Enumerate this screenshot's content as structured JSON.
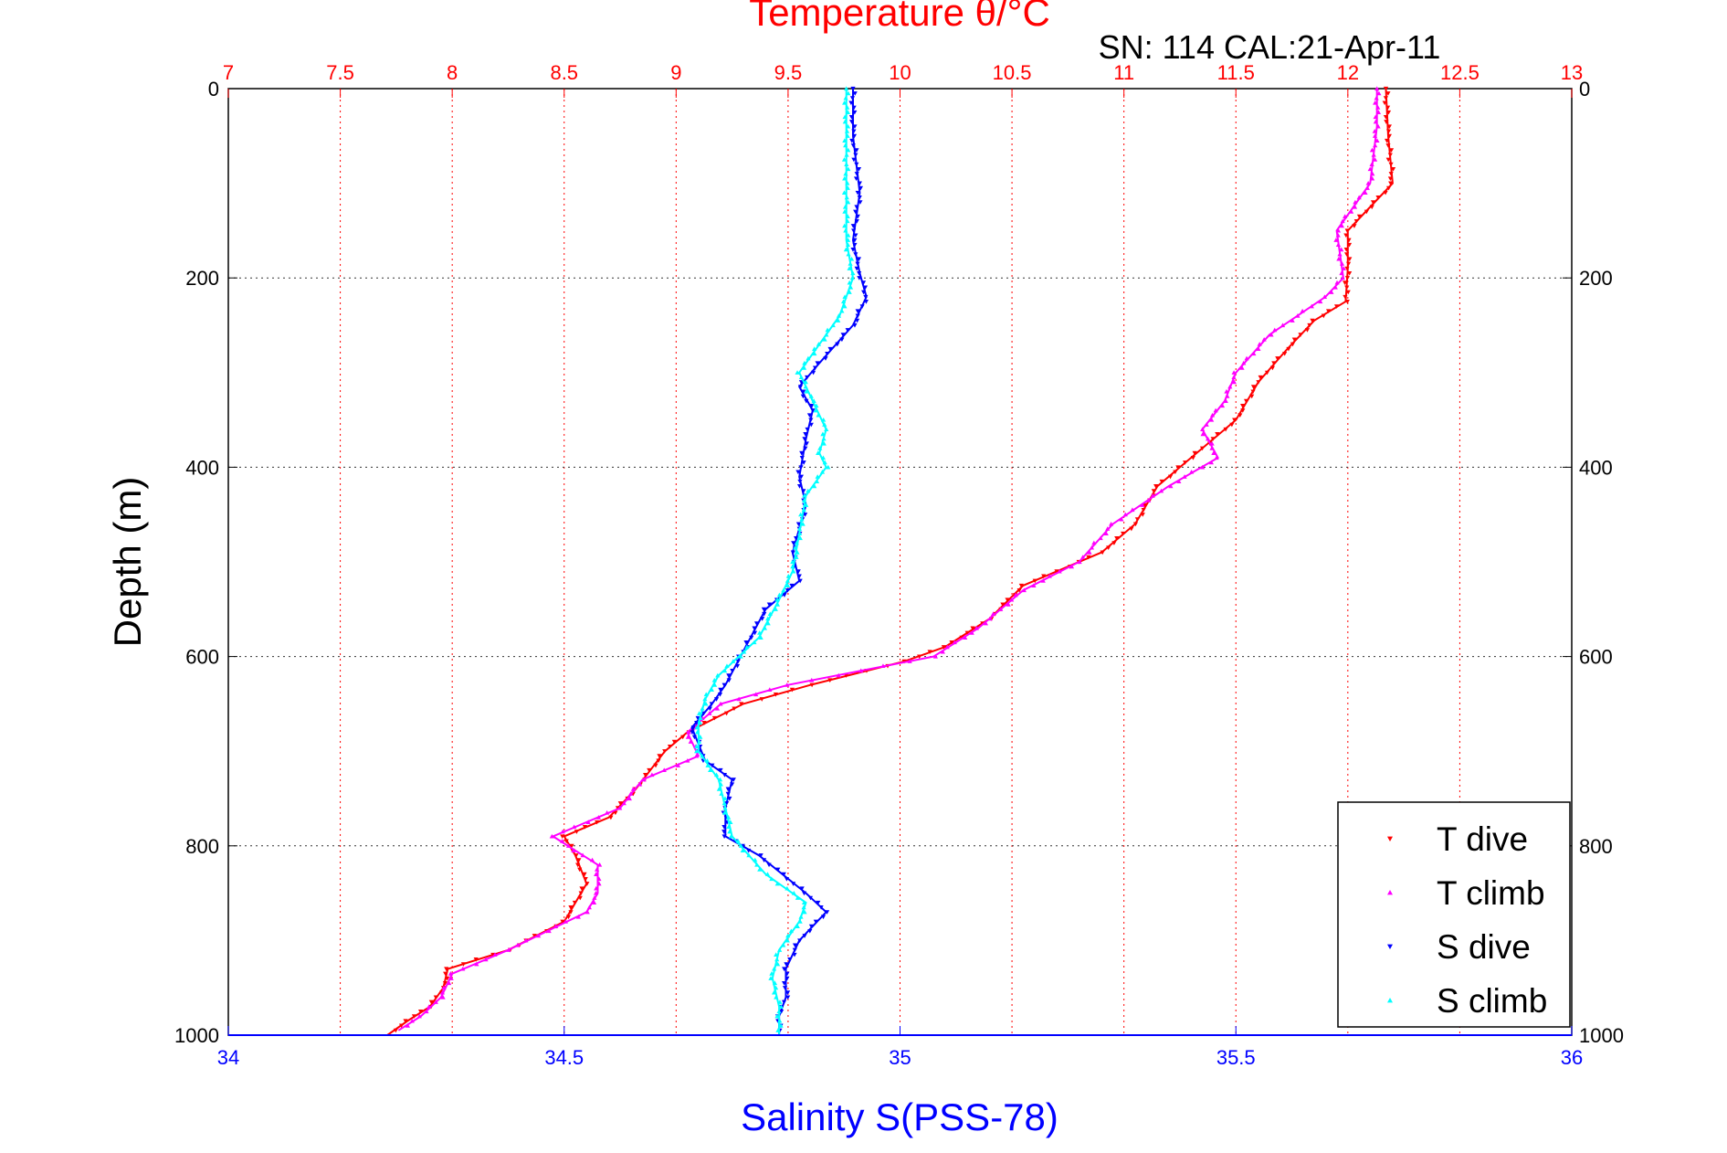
{
  "chart_data": {
    "type": "scatter",
    "title_top": "Temperature θ/°C",
    "subtitle": "SN: 114  CAL:21-Apr-11",
    "ylabel": "Depth (m)",
    "xlabel_bottom": "Salinity S(PSS-78)",
    "ylim": [
      0,
      1000
    ],
    "y_reversed": true,
    "y_ticks": [
      "0",
      "200",
      "400",
      "600",
      "800",
      "1000"
    ],
    "temperature_axis": {
      "position": "top",
      "range": [
        7,
        13
      ],
      "ticks": [
        "7",
        "7.5",
        "8",
        "8.5",
        "9",
        "9.5",
        "10",
        "10.5",
        "11",
        "11.5",
        "12",
        "12.5",
        "13"
      ],
      "color": "#ff0000",
      "grid": true
    },
    "salinity_axis": {
      "position": "bottom",
      "range": [
        34,
        36
      ],
      "ticks": [
        "34",
        "34.5",
        "35",
        "35.5",
        "36"
      ],
      "color": "#0000ff"
    },
    "legend_position": "bottom-right",
    "series": [
      {
        "name": "T dive",
        "axis": "temperature",
        "color": "#ff0000",
        "marker": "triangle-down",
        "points": [
          [
            12.17,
            0
          ],
          [
            12.18,
            50
          ],
          [
            12.2,
            100
          ],
          [
            12.1,
            125
          ],
          [
            12.0,
            150
          ],
          [
            12.0,
            190
          ],
          [
            11.99,
            225
          ],
          [
            11.85,
            245
          ],
          [
            11.73,
            275
          ],
          [
            11.6,
            310
          ],
          [
            11.5,
            350
          ],
          [
            11.3,
            390
          ],
          [
            11.15,
            420
          ],
          [
            11.05,
            460
          ],
          [
            10.9,
            490
          ],
          [
            10.55,
            525
          ],
          [
            10.4,
            560
          ],
          [
            10.2,
            590
          ],
          [
            10.02,
            605
          ],
          [
            9.6,
            630
          ],
          [
            9.3,
            650
          ],
          [
            9.05,
            680
          ],
          [
            8.95,
            700
          ],
          [
            8.82,
            740
          ],
          [
            8.7,
            770
          ],
          [
            8.5,
            790
          ],
          [
            8.55,
            810
          ],
          [
            8.6,
            840
          ],
          [
            8.5,
            880
          ],
          [
            8.25,
            910
          ],
          [
            7.98,
            930
          ],
          [
            7.96,
            950
          ],
          [
            7.9,
            970
          ],
          [
            7.8,
            985
          ],
          [
            7.71,
            1000
          ]
        ]
      },
      {
        "name": "T climb",
        "axis": "temperature",
        "color": "#ff00ff",
        "marker": "triangle-up",
        "points": [
          [
            12.13,
            0
          ],
          [
            12.13,
            40
          ],
          [
            12.1,
            100
          ],
          [
            11.95,
            150
          ],
          [
            11.98,
            200
          ],
          [
            11.9,
            220
          ],
          [
            11.65,
            260
          ],
          [
            11.5,
            300
          ],
          [
            11.45,
            330
          ],
          [
            11.35,
            360
          ],
          [
            11.42,
            390
          ],
          [
            11.2,
            420
          ],
          [
            10.95,
            460
          ],
          [
            10.8,
            500
          ],
          [
            10.55,
            530
          ],
          [
            10.35,
            570
          ],
          [
            10.15,
            600
          ],
          [
            9.5,
            630
          ],
          [
            9.2,
            650
          ],
          [
            9.05,
            680
          ],
          [
            9.1,
            705
          ],
          [
            8.85,
            730
          ],
          [
            8.75,
            760
          ],
          [
            8.45,
            790
          ],
          [
            8.65,
            820
          ],
          [
            8.65,
            850
          ],
          [
            8.6,
            870
          ],
          [
            8.25,
            910
          ],
          [
            8.0,
            935
          ],
          [
            7.95,
            960
          ],
          [
            7.86,
            980
          ],
          [
            7.76,
            995
          ]
        ]
      },
      {
        "name": "S dive",
        "axis": "salinity",
        "color": "#0000ff",
        "marker": "triangle-down",
        "points": [
          [
            34.93,
            0
          ],
          [
            34.93,
            50
          ],
          [
            34.94,
            110
          ],
          [
            34.93,
            160
          ],
          [
            34.94,
            195
          ],
          [
            34.95,
            220
          ],
          [
            34.93,
            250
          ],
          [
            34.88,
            290
          ],
          [
            34.85,
            315
          ],
          [
            34.87,
            340
          ],
          [
            34.86,
            370
          ],
          [
            34.85,
            410
          ],
          [
            34.86,
            440
          ],
          [
            34.84,
            490
          ],
          [
            34.85,
            520
          ],
          [
            34.8,
            550
          ],
          [
            34.77,
            590
          ],
          [
            34.74,
            630
          ],
          [
            34.72,
            650
          ],
          [
            34.69,
            675
          ],
          [
            34.71,
            710
          ],
          [
            34.75,
            730
          ],
          [
            34.74,
            760
          ],
          [
            34.74,
            790
          ],
          [
            34.79,
            810
          ],
          [
            34.86,
            850
          ],
          [
            34.89,
            870
          ],
          [
            34.85,
            900
          ],
          [
            34.83,
            930
          ],
          [
            34.83,
            960
          ],
          [
            34.82,
            980
          ],
          [
            34.82,
            1000
          ]
        ]
      },
      {
        "name": "S climb",
        "axis": "salinity",
        "color": "#00ffff",
        "marker": "triangle-up",
        "points": [
          [
            34.92,
            0
          ],
          [
            34.92,
            50
          ],
          [
            34.92,
            110
          ],
          [
            34.92,
            160
          ],
          [
            34.93,
            200
          ],
          [
            34.91,
            240
          ],
          [
            34.87,
            280
          ],
          [
            34.85,
            300
          ],
          [
            34.87,
            330
          ],
          [
            34.89,
            360
          ],
          [
            34.88,
            385
          ],
          [
            34.89,
            400
          ],
          [
            34.86,
            430
          ],
          [
            34.85,
            470
          ],
          [
            34.84,
            510
          ],
          [
            34.82,
            540
          ],
          [
            34.79,
            580
          ],
          [
            34.73,
            620
          ],
          [
            34.71,
            645
          ],
          [
            34.7,
            670
          ],
          [
            34.7,
            700
          ],
          [
            34.73,
            730
          ],
          [
            34.74,
            760
          ],
          [
            34.75,
            790
          ],
          [
            34.8,
            830
          ],
          [
            34.86,
            860
          ],
          [
            34.85,
            880
          ],
          [
            34.82,
            910
          ],
          [
            34.81,
            940
          ],
          [
            34.82,
            970
          ],
          [
            34.82,
            1000
          ]
        ]
      }
    ]
  }
}
